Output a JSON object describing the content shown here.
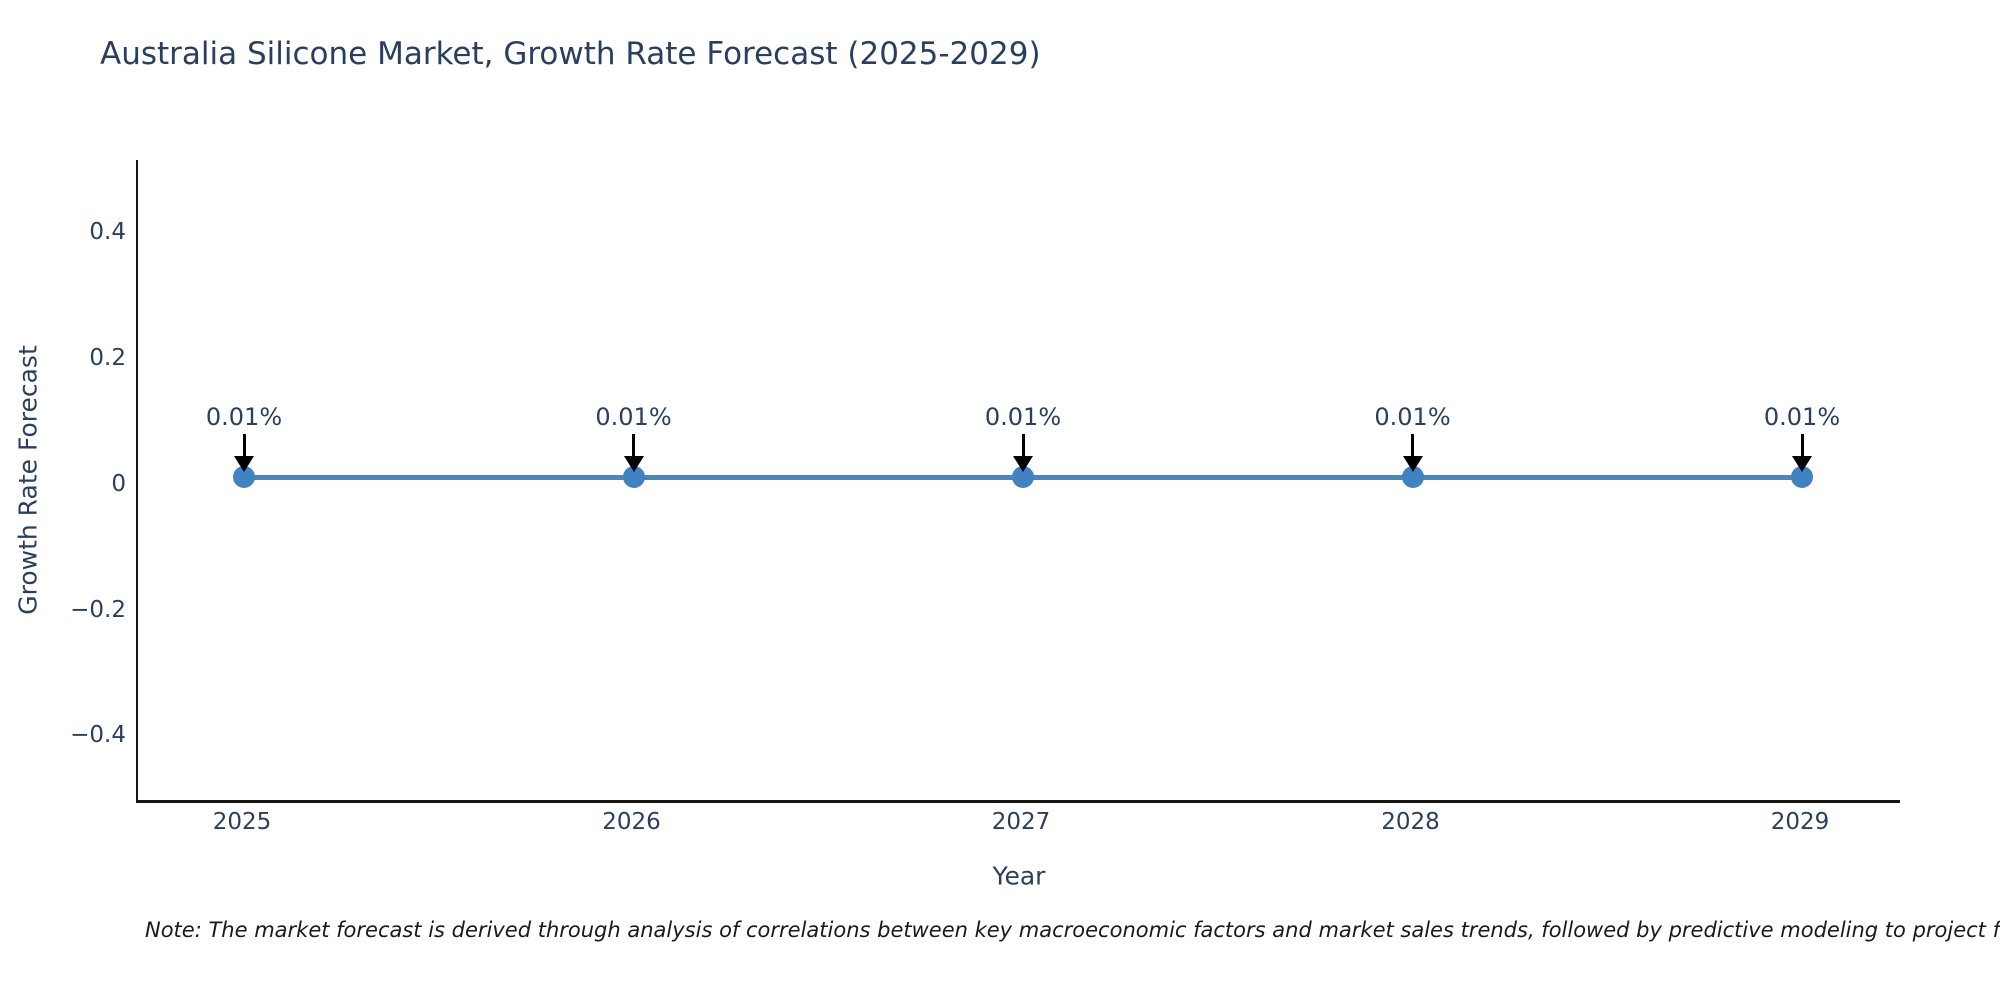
{
  "title": "Australia Silicone Market, Growth Rate Forecast (2025-2029)",
  "note": "Note: The market forecast is derived through analysis of correlations between key macroeconomic factors and market sales trends, followed by predictive modeling to project future sa",
  "colors": {
    "text": "#2a3f5f",
    "axis": "#151515",
    "line": "#4d86b5",
    "marker": "#4182c4",
    "arrow": "#000000",
    "note_text": "#1a1a1a",
    "background": "#ffffff"
  },
  "chart_data": {
    "type": "line",
    "title": "Australia Silicone Market, Growth Rate Forecast (2025-2029)",
    "xlabel": "Year",
    "ylabel": "Growth Rate Forecast",
    "x": [
      2025,
      2026,
      2027,
      2028,
      2029
    ],
    "series": [
      {
        "name": "Growth Rate Forecast",
        "values": [
          0.01,
          0.01,
          0.01,
          0.01,
          0.01
        ]
      }
    ],
    "point_labels": [
      "0.01%",
      "0.01%",
      "0.01%",
      "0.01%",
      "0.01%"
    ],
    "xtick_labels": [
      "2025",
      "2026",
      "2027",
      "2028",
      "2029"
    ],
    "yticks": [
      0.4,
      0.2,
      0,
      -0.2,
      -0.4
    ],
    "ytick_labels": [
      "0.4",
      "0.2",
      "0",
      "−0.2",
      "−0.4"
    ],
    "ylim": [
      -0.5,
      0.52
    ],
    "grid": false,
    "legend": "none",
    "annotations_style": "value label with downward arrow to each point"
  }
}
